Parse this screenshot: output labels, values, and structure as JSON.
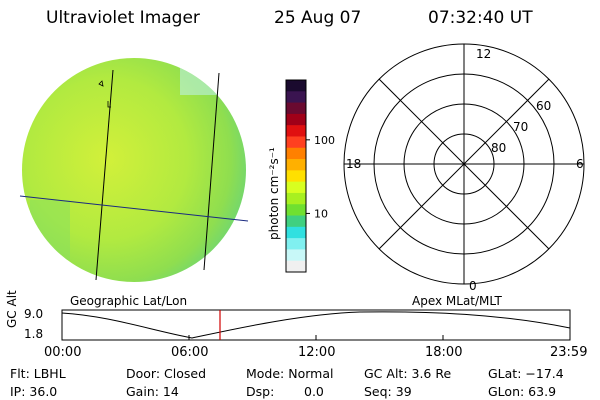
{
  "header": {
    "instrument": "Ultraviolet Imager",
    "date": "25 Aug 07",
    "time": "07:32:40 UT"
  },
  "colorbar": {
    "unit_label": "photon cm⁻²s⁻¹",
    "tick_labels": [
      "100",
      "10"
    ],
    "tick_values": [
      100,
      10
    ],
    "colors_top_to_bottom": [
      "#1a0a2e",
      "#3a1450",
      "#6a0a30",
      "#a00018",
      "#e01010",
      "#ff4020",
      "#ff8000",
      "#ffb000",
      "#ffe000",
      "#d8ff20",
      "#a8f020",
      "#70e030",
      "#40d080",
      "#30e0e0",
      "#80f0f0",
      "#c8f8f8",
      "#f0f0f0"
    ]
  },
  "polar_plot": {
    "hour_labels": [
      "12",
      "18",
      "6",
      "0"
    ],
    "lat_labels": [
      "60",
      "70",
      "80"
    ]
  },
  "image_panel": {
    "label": "Geographic Lat/Lon",
    "fill_color": "#b8ec3a",
    "edge_color": "#7cd45a"
  },
  "polar_panel": {
    "label": "Apex MLat/MLT"
  },
  "altitude_plot": {
    "ylabel": "GC Alt",
    "y_ticks": [
      "9.0",
      "1.8"
    ],
    "x_ticks": [
      "00:00",
      "06:00",
      "12:00",
      "18:00",
      "23:59"
    ],
    "current_time_marker_color": "#d00000"
  },
  "status": {
    "flt": "Flt: LBHL",
    "ip": "IP: 36.0",
    "door": "Door: Closed",
    "gain": "Gain: 14",
    "mode": "Mode: Normal",
    "dsp_label": "Dsp:",
    "dsp_value": "0.0",
    "gc_alt": "GC Alt: 3.6 Re",
    "seq": "Seq: 39",
    "glat": "GLat: −17.4",
    "glon": "GLon:  63.9"
  }
}
